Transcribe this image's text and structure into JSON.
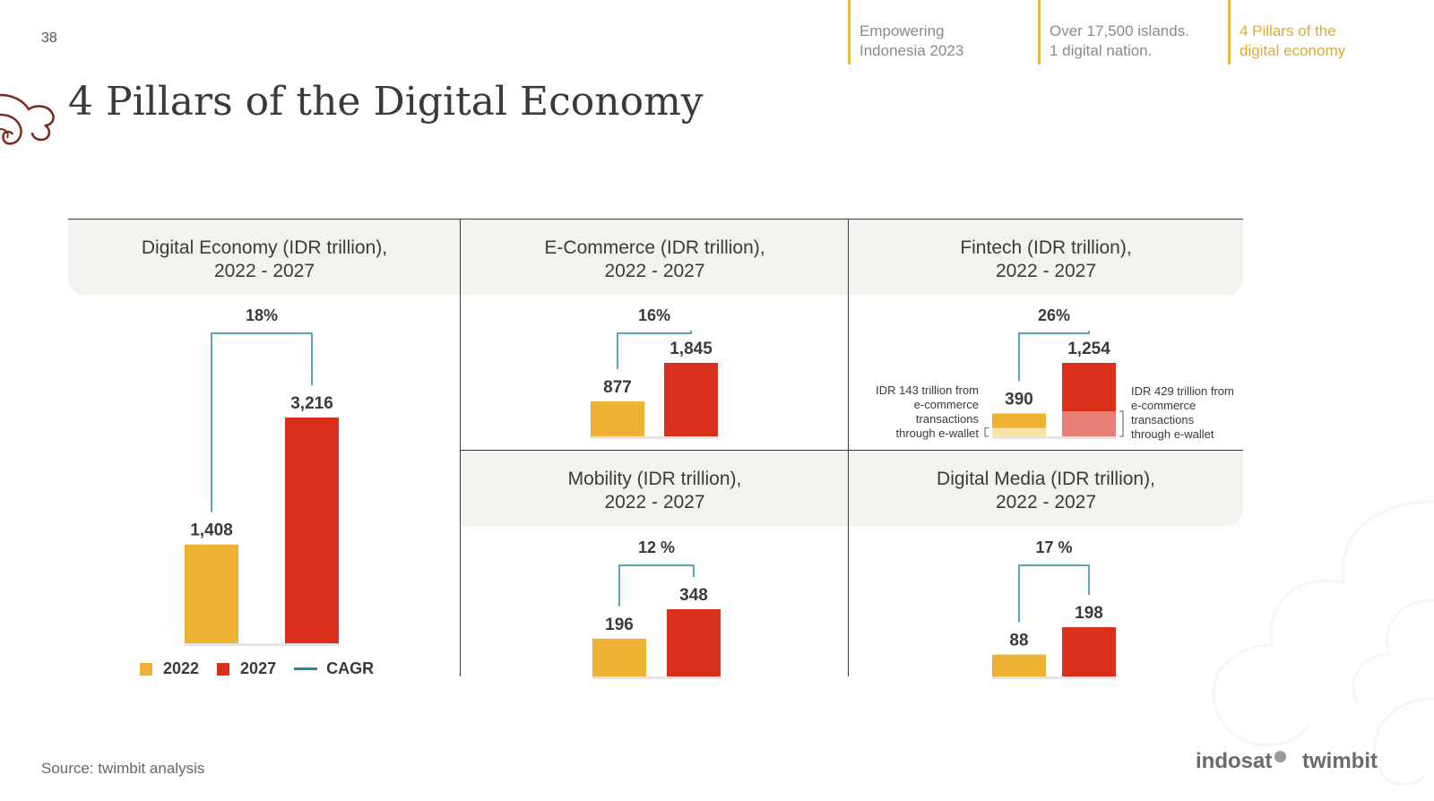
{
  "page": {
    "number": "38",
    "title": "4 Pillars of the Digital Economy",
    "source": "Source: twimbit analysis"
  },
  "nav": [
    {
      "line1": "Empowering",
      "line2": "Indonesia 2023",
      "active": false
    },
    {
      "line1": "Over 17,500 islands.",
      "line2": "1 digital nation.",
      "active": false
    },
    {
      "line1": "4 Pillars of the",
      "line2": "digital economy",
      "active": true
    }
  ],
  "legend": {
    "label_2022": "2022",
    "label_2027": "2027",
    "label_cagr": "CAGR"
  },
  "logos": {
    "indosat": "indosat",
    "twimbit": "twimbit"
  },
  "colors": {
    "y2022": "#eeb134",
    "y2027": "#d8301b",
    "cagr": "#1f8c9e",
    "ewallet_2022": "#f8e3a6",
    "ewallet_2027": "#e98078",
    "header_bg": "#f3f2ef"
  },
  "chart_data": [
    {
      "type": "bar",
      "title": "Digital Economy (IDR trillion),",
      "subtitle": "2022 - 2027",
      "categories": [
        "2022",
        "2027"
      ],
      "values": [
        1408,
        3216
      ],
      "value_labels": [
        "1,408",
        "3,216"
      ],
      "cagr": "18%",
      "legend": [
        "2022",
        "2027",
        "CAGR"
      ]
    },
    {
      "type": "bar",
      "title": "E-Commerce (IDR trillion),",
      "subtitle": "2022 - 2027",
      "categories": [
        "2022",
        "2027"
      ],
      "values": [
        877,
        1845
      ],
      "value_labels": [
        "877",
        "1,845"
      ],
      "cagr": "16%"
    },
    {
      "type": "bar",
      "title": "Fintech (IDR trillion),",
      "subtitle": "2022 - 2027",
      "categories": [
        "2022",
        "2027"
      ],
      "values": [
        390,
        1254
      ],
      "value_labels": [
        "390",
        "1,254"
      ],
      "ewallet_ecommerce": [
        143,
        429
      ],
      "cagr": "26%",
      "annotations": {
        "left": [
          "IDR 143 trillion from",
          "e-commerce",
          "transactions",
          "through e-wallet"
        ],
        "right": [
          "IDR 429 trillion from",
          "e-commerce",
          "transactions",
          "through e-wallet"
        ]
      }
    },
    {
      "type": "bar",
      "title": "Mobility (IDR trillion),",
      "subtitle": "2022 - 2027",
      "categories": [
        "2022",
        "2027"
      ],
      "values": [
        196,
        348
      ],
      "value_labels": [
        "196",
        "348"
      ],
      "cagr": "12 %"
    },
    {
      "type": "bar",
      "title": "Digital Media (IDR trillion),",
      "subtitle": "2022 - 2027",
      "categories": [
        "2022",
        "2027"
      ],
      "values": [
        88,
        198
      ],
      "value_labels": [
        "88",
        "198"
      ],
      "cagr": "17 %"
    }
  ]
}
